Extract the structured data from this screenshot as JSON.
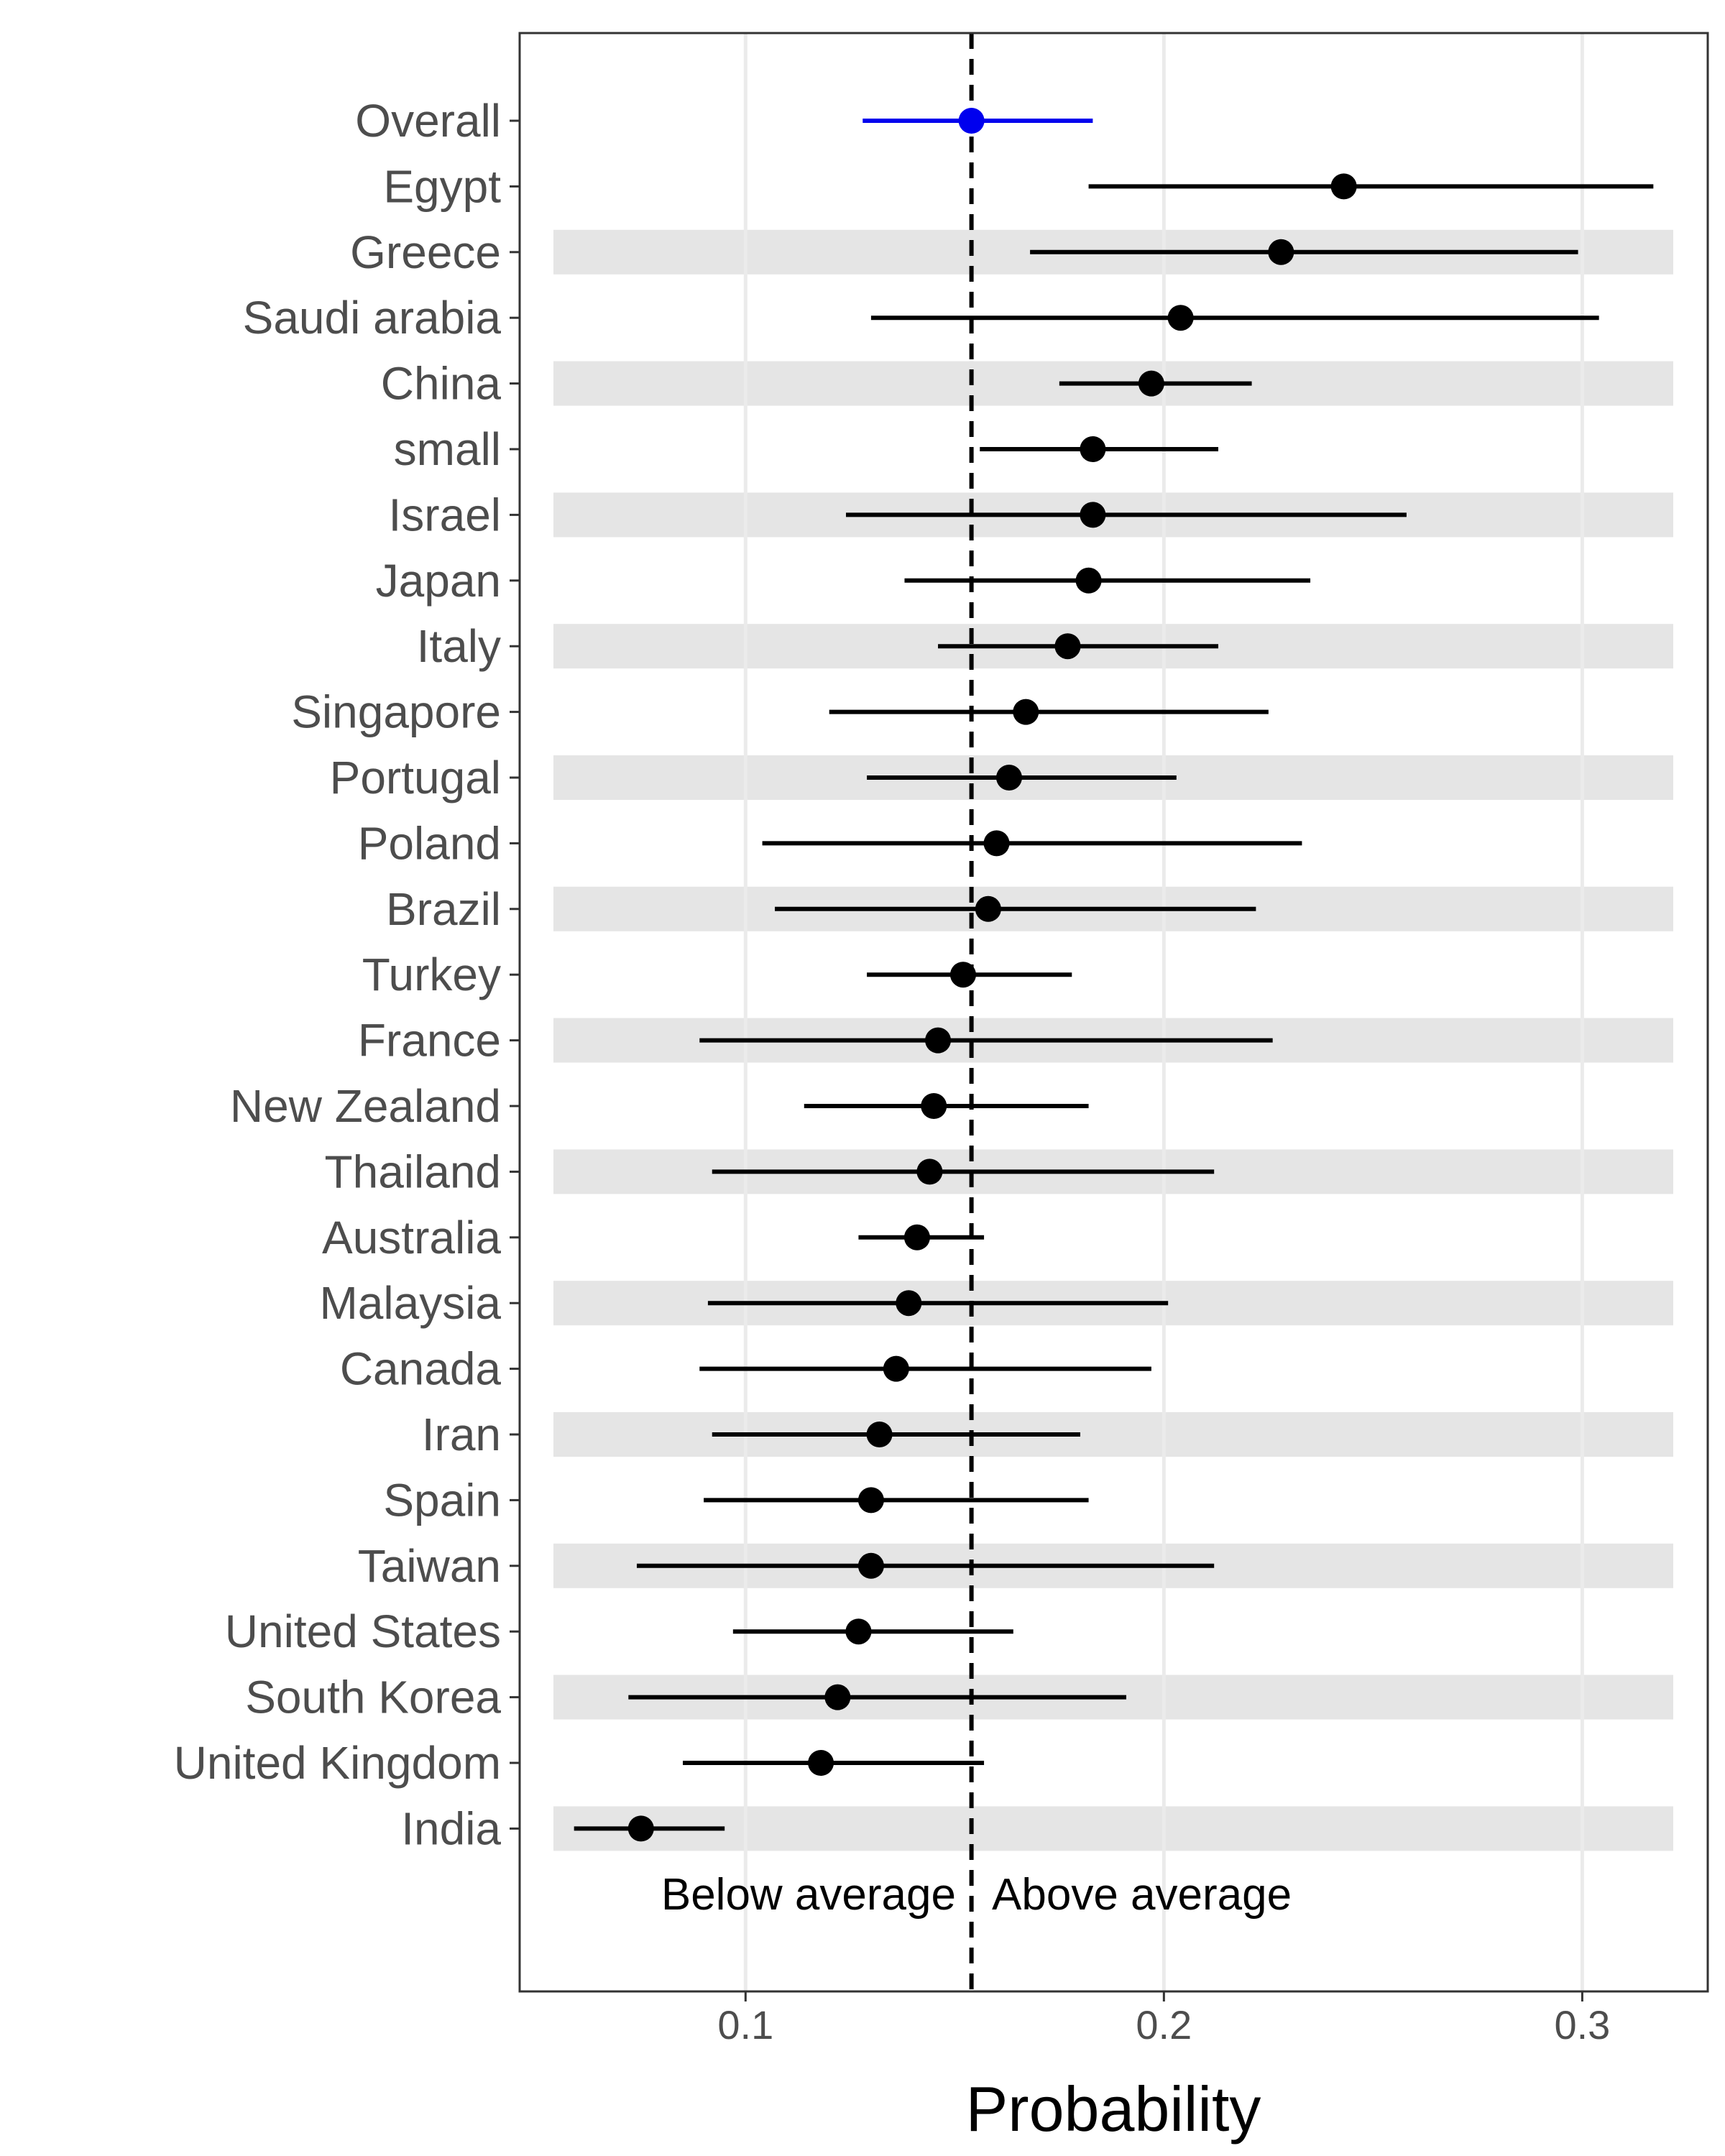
{
  "chart_data": {
    "type": "scatter",
    "subtype": "dot-and-whisker",
    "xlabel": "Probability",
    "ylabel": "",
    "xlim": [
      0.046,
      0.33
    ],
    "xticks": [
      0.1,
      0.2,
      0.3
    ],
    "xtick_labels": [
      "0.1",
      "0.2",
      "0.3"
    ],
    "reference_line": 0.154,
    "annotations": {
      "left": "Below average",
      "right": "Above average"
    },
    "grid": true,
    "alternating_row_bands": true,
    "colors": {
      "overall": "#0000ee",
      "points": "#000000",
      "band": "#e5e5e5",
      "grid": "#ebebeb",
      "tick_text": "#4d4d4d"
    },
    "rows": [
      {
        "label": "Overall",
        "estimate": 0.154,
        "lower": 0.128,
        "upper": 0.183,
        "highlight": true
      },
      {
        "label": "Egypt",
        "estimate": 0.243,
        "lower": 0.182,
        "upper": 0.317
      },
      {
        "label": "Greece",
        "estimate": 0.228,
        "lower": 0.168,
        "upper": 0.299
      },
      {
        "label": "Saudi arabia",
        "estimate": 0.204,
        "lower": 0.13,
        "upper": 0.304
      },
      {
        "label": "China",
        "estimate": 0.197,
        "lower": 0.175,
        "upper": 0.221
      },
      {
        "label": "small",
        "estimate": 0.183,
        "lower": 0.156,
        "upper": 0.213
      },
      {
        "label": "Israel",
        "estimate": 0.183,
        "lower": 0.124,
        "upper": 0.258
      },
      {
        "label": "Japan",
        "estimate": 0.182,
        "lower": 0.138,
        "upper": 0.235
      },
      {
        "label": "Italy",
        "estimate": 0.177,
        "lower": 0.146,
        "upper": 0.213
      },
      {
        "label": "Singapore",
        "estimate": 0.167,
        "lower": 0.12,
        "upper": 0.225
      },
      {
        "label": "Portugal",
        "estimate": 0.163,
        "lower": 0.129,
        "upper": 0.203
      },
      {
        "label": "Poland",
        "estimate": 0.16,
        "lower": 0.104,
        "upper": 0.233
      },
      {
        "label": "Brazil",
        "estimate": 0.158,
        "lower": 0.107,
        "upper": 0.222
      },
      {
        "label": "Turkey",
        "estimate": 0.152,
        "lower": 0.129,
        "upper": 0.178
      },
      {
        "label": "France",
        "estimate": 0.146,
        "lower": 0.089,
        "upper": 0.226
      },
      {
        "label": "New Zealand",
        "estimate": 0.145,
        "lower": 0.114,
        "upper": 0.182
      },
      {
        "label": "Thailand",
        "estimate": 0.144,
        "lower": 0.092,
        "upper": 0.212
      },
      {
        "label": "Australia",
        "estimate": 0.141,
        "lower": 0.127,
        "upper": 0.157
      },
      {
        "label": "Malaysia",
        "estimate": 0.139,
        "lower": 0.091,
        "upper": 0.201
      },
      {
        "label": "Canada",
        "estimate": 0.136,
        "lower": 0.089,
        "upper": 0.197
      },
      {
        "label": "Iran",
        "estimate": 0.132,
        "lower": 0.092,
        "upper": 0.18
      },
      {
        "label": "Spain",
        "estimate": 0.13,
        "lower": 0.09,
        "upper": 0.182
      },
      {
        "label": "Taiwan",
        "estimate": 0.13,
        "lower": 0.074,
        "upper": 0.212
      },
      {
        "label": "United States",
        "estimate": 0.127,
        "lower": 0.097,
        "upper": 0.164
      },
      {
        "label": "South Korea",
        "estimate": 0.122,
        "lower": 0.072,
        "upper": 0.191
      },
      {
        "label": "United Kingdom",
        "estimate": 0.118,
        "lower": 0.085,
        "upper": 0.157
      },
      {
        "label": "India",
        "estimate": 0.075,
        "lower": 0.059,
        "upper": 0.095
      }
    ]
  }
}
